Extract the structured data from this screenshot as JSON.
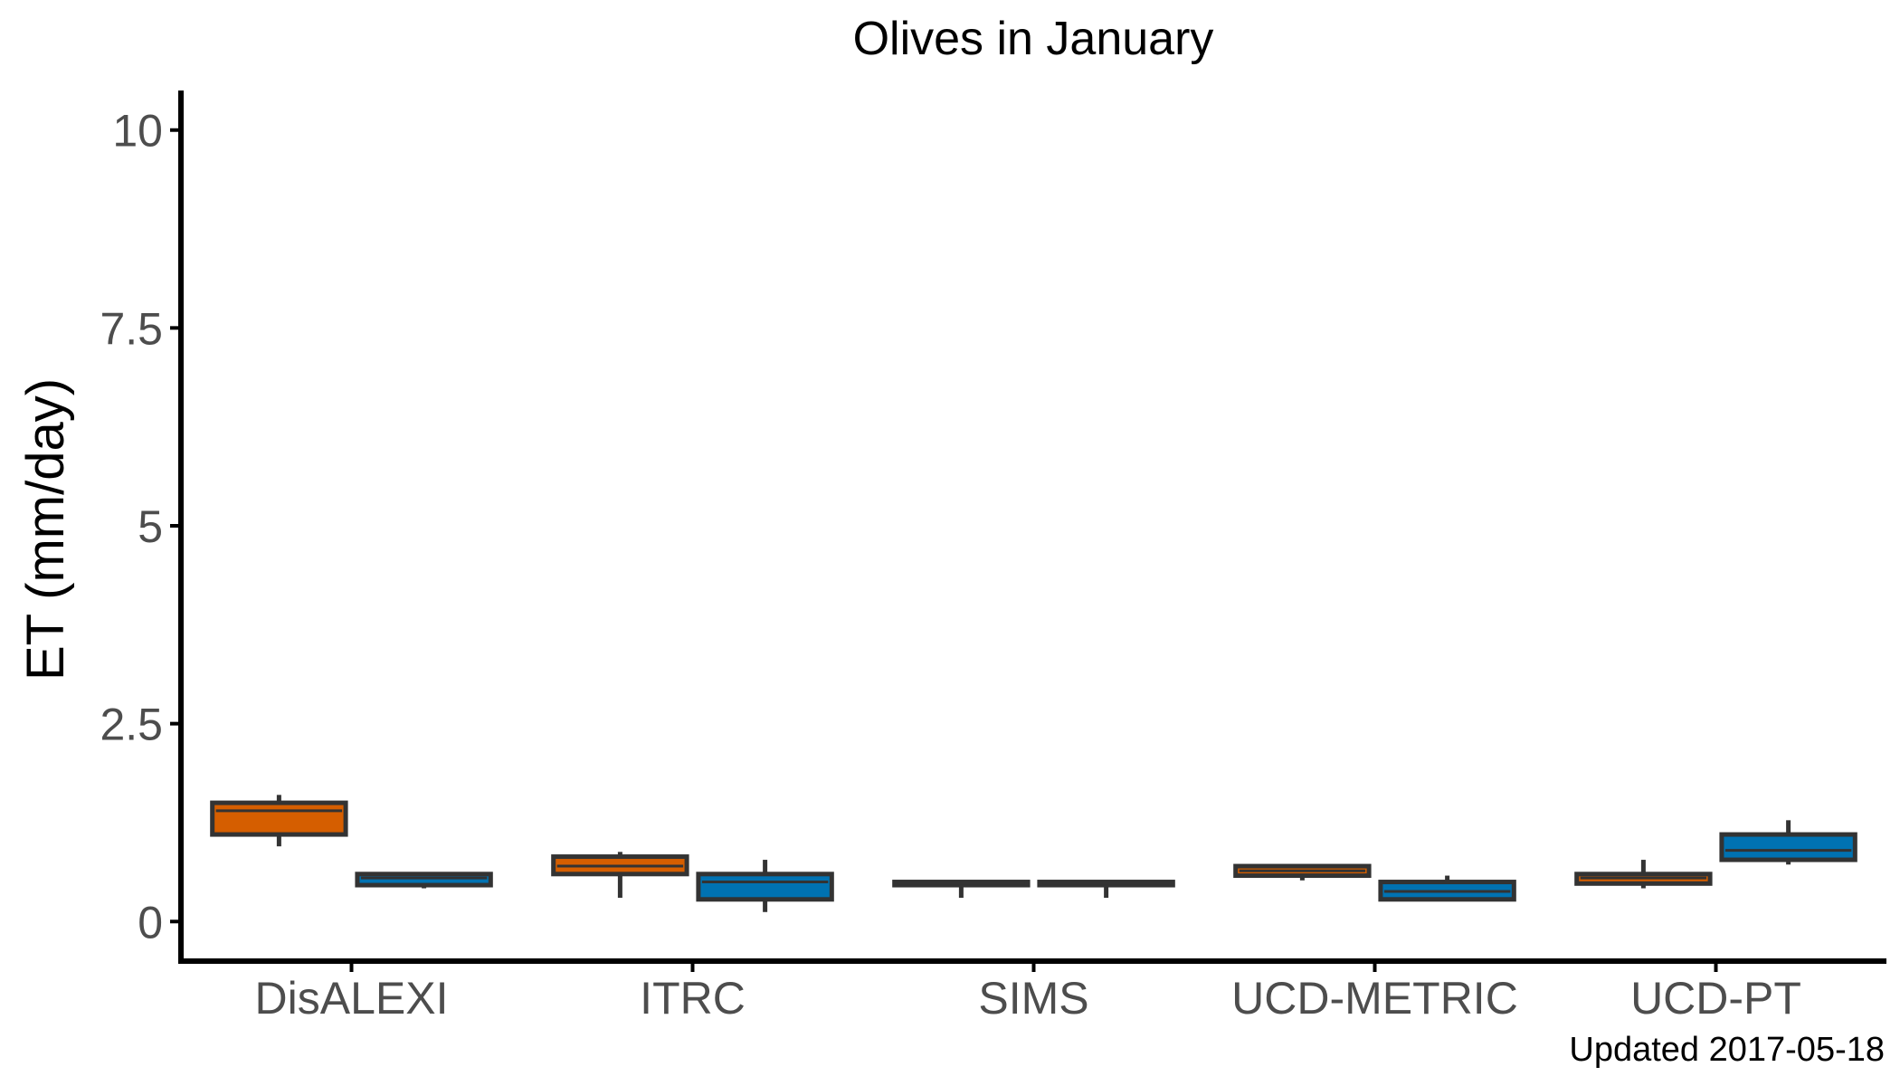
{
  "chart_data": {
    "type": "boxplot",
    "title": "Olives in January",
    "xlabel": "",
    "ylabel": "ET (mm/day)",
    "ylim": [
      -0.5,
      10.5
    ],
    "yticks": [
      0,
      2.5,
      5,
      7.5,
      10
    ],
    "ytick_labels": [
      "0",
      "2.5",
      "5",
      "7.5",
      "10"
    ],
    "grid": false,
    "legend": "none",
    "categories": [
      "DisALEXI",
      "ITRC",
      "SIMS",
      "UCD-METRIC",
      "UCD-PT"
    ],
    "series": [
      {
        "color": "#d55e00",
        "boxes": [
          {
            "min": 0.95,
            "q1": 1.1,
            "median": 1.4,
            "q3": 1.5,
            "max": 1.6
          },
          {
            "min": 0.3,
            "q1": 0.6,
            "median": 0.7,
            "q3": 0.82,
            "max": 0.88
          },
          {
            "min": 0.3,
            "q1": 0.46,
            "median": 0.48,
            "q3": 0.5,
            "max": 0.5
          },
          {
            "min": 0.52,
            "q1": 0.58,
            "median": 0.64,
            "q3": 0.7,
            "max": 0.7
          },
          {
            "min": 0.42,
            "q1": 0.48,
            "median": 0.55,
            "q3": 0.6,
            "max": 0.78
          }
        ]
      },
      {
        "color": "#0072b2",
        "boxes": [
          {
            "min": 0.42,
            "q1": 0.46,
            "median": 0.55,
            "q3": 0.6,
            "max": 0.6
          },
          {
            "min": 0.12,
            "q1": 0.28,
            "median": 0.5,
            "q3": 0.6,
            "max": 0.78
          },
          {
            "min": 0.3,
            "q1": 0.46,
            "median": 0.48,
            "q3": 0.5,
            "max": 0.5
          },
          {
            "min": 0.26,
            "q1": 0.28,
            "median": 0.38,
            "q3": 0.5,
            "max": 0.58
          },
          {
            "min": 0.72,
            "q1": 0.78,
            "median": 0.9,
            "q3": 1.1,
            "max": 1.28
          }
        ]
      }
    ],
    "caption": "Updated  2017-05-18"
  }
}
